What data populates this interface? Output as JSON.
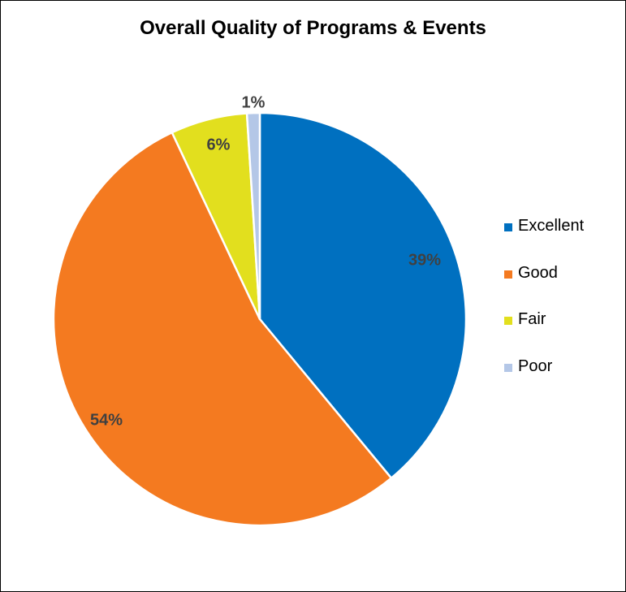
{
  "chart_data": {
    "type": "pie",
    "title": "Overall Quality of Programs & Events",
    "categories": [
      "Excellent",
      "Good",
      "Fair",
      "Poor"
    ],
    "values": [
      39,
      54,
      6,
      1
    ],
    "data_labels": [
      "39%",
      "54%",
      "6%",
      "1%"
    ],
    "colors": [
      "#0070C0",
      "#F47A20",
      "#E2DF1E",
      "#B4C7E7"
    ],
    "legend_position": "right"
  }
}
